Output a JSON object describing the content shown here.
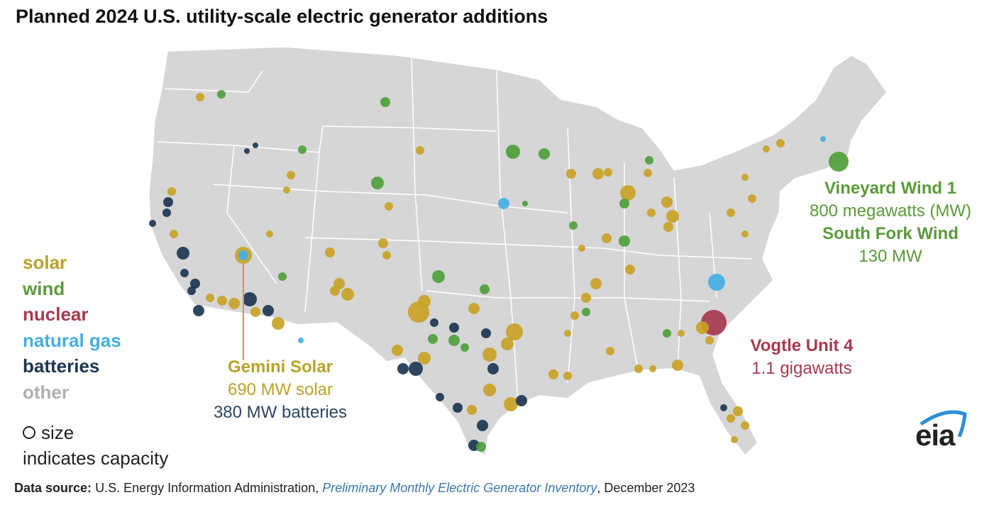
{
  "title": "Planned 2024 U.S. utility-scale electric generator additions",
  "legend": {
    "items": [
      {
        "label": "solar",
        "color": "#c9a227"
      },
      {
        "label": "wind",
        "color": "#4fa03c"
      },
      {
        "label": "nuclear",
        "color": "#a63a4e"
      },
      {
        "label": "natural gas",
        "color": "#45aee6"
      },
      {
        "label": "batteries",
        "color": "#1c3652"
      },
      {
        "label": "other",
        "color": "#a8a8a8"
      }
    ],
    "size_line1": "size",
    "size_line2": "indicates capacity"
  },
  "annotations": {
    "vineyard": {
      "name": "Vineyard Wind 1",
      "value": "800 megawatts (MW)"
    },
    "southfork": {
      "name": "South Fork Wind",
      "value": "130 MW"
    },
    "vogtle": {
      "name": "Vogtle Unit 4",
      "value": "1.1 gigawatts"
    },
    "gemini": {
      "name": "Gemini Solar",
      "value_solar": "690 MW solar",
      "value_batteries": "380 MW batteries"
    }
  },
  "source": {
    "label": "Data source:",
    "text": "U.S. Energy Information Administration,",
    "publication": "Preliminary Monthly Electric Generator Inventory",
    "date": ", December 2023"
  },
  "logo": "eia"
}
